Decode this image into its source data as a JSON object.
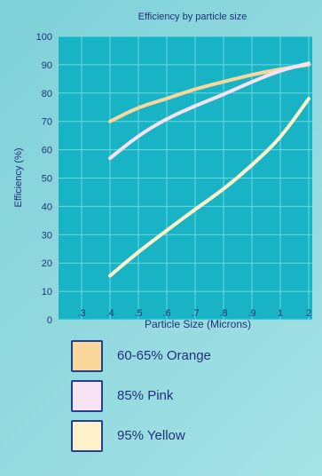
{
  "chart_data": {
    "type": "line",
    "title": "Efficiency by particle size",
    "xlabel": "Particle Size (Microns)",
    "ylabel": "Efficiency (%)",
    "categories": [
      ".3",
      ".4",
      ".5",
      ".6",
      ".7",
      ".8",
      ".9",
      "1",
      "2"
    ],
    "yticks": [
      0,
      10,
      20,
      30,
      40,
      50,
      60,
      70,
      80,
      90,
      100
    ],
    "ylim": [
      0,
      100
    ],
    "grid": true,
    "legend_position": "bottom",
    "series": [
      {
        "name": "60-65% Orange",
        "color": "#f9d79a",
        "points": [
          [
            ".4",
            70
          ],
          [
            ".5",
            75
          ],
          [
            ".6",
            78
          ],
          [
            ".7",
            81.5
          ],
          [
            ".8",
            84
          ],
          [
            ".9",
            86.5
          ],
          [
            "1",
            88.5
          ],
          [
            "2",
            90
          ]
        ]
      },
      {
        "name": "85% Pink",
        "color": "#f7e2f3",
        "points": [
          [
            ".4",
            57
          ],
          [
            ".5",
            65
          ],
          [
            ".6",
            71
          ],
          [
            ".7",
            75.5
          ],
          [
            ".8",
            79.5
          ],
          [
            ".9",
            84
          ],
          [
            "1",
            88
          ],
          [
            "2",
            90.5
          ]
        ]
      },
      {
        "name": "95% Yellow",
        "color": "#fdf1c9",
        "points": [
          [
            ".4",
            15.5
          ],
          [
            ".5",
            24
          ],
          [
            ".6",
            31.5
          ],
          [
            ".7",
            39
          ],
          [
            ".8",
            46
          ],
          [
            ".9",
            54.5
          ],
          [
            "1",
            64
          ],
          [
            "2",
            78
          ]
        ]
      }
    ]
  }
}
